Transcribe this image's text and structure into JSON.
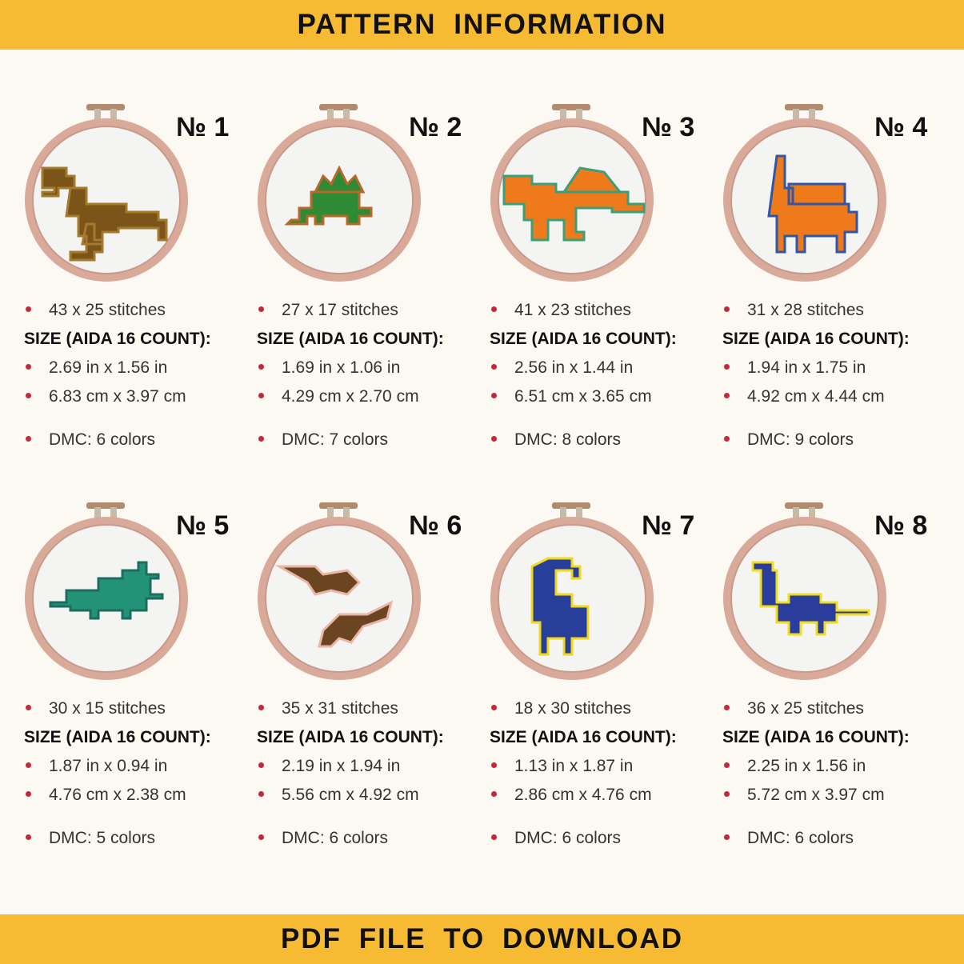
{
  "header": {
    "title": "PATTERN  INFORMATION"
  },
  "footer": {
    "title": "PDF  FILE  TO  DOWNLOAD"
  },
  "colors": {
    "banner": "#f7bb33",
    "bullet": "#c8263a",
    "hoop": "#d9a99a",
    "fabric": "#f4f5f3"
  },
  "size_heading": "SIZE (AIDA 16 COUNT):",
  "patterns": [
    {
      "number": "№ 1",
      "stitches": "43 x 25 stitches",
      "inches": "2.69 in x 1.56 in",
      "cm": "6.83 cm x 3.97 cm",
      "dmc": "DMC: 6 colors",
      "dino": "t-rex",
      "main": "#7a5418",
      "accent": "#a57a2c"
    },
    {
      "number": "№ 2",
      "stitches": "27 x 17 stitches",
      "inches": "1.69 in x 1.06 in",
      "cm": "4.29 cm x 2.70 cm",
      "dmc": "DMC: 7 colors",
      "dino": "stegosaurus",
      "main": "#2f8a35",
      "accent": "#b8682a"
    },
    {
      "number": "№ 3",
      "stitches": "41 x 23 stitches",
      "inches": "2.56 in x 1.44 in",
      "cm": "6.51 cm x 3.65 cm",
      "dmc": "DMC: 8 colors",
      "dino": "spinosaurus",
      "main": "#ee7a1c",
      "accent": "#3aa07a"
    },
    {
      "number": "№ 4",
      "stitches": "31 x 28 stitches",
      "inches": "1.94 in x 1.75 in",
      "cm": "4.92 cm x 4.44 cm",
      "dmc": "DMC: 9 colors",
      "dino": "ankylosaurus",
      "main": "#ef7a1c",
      "accent": "#2f56a8"
    },
    {
      "number": "№ 5",
      "stitches": "30 x 15 stitches",
      "inches": "1.87 in x 0.94 in",
      "cm": "4.76 cm x 2.38 cm",
      "dmc": "DMC: 5 colors",
      "dino": "triceratops",
      "main": "#239378",
      "accent": "#1c6d5e"
    },
    {
      "number": "№ 6",
      "stitches": "35 x 31 stitches",
      "inches": "2.19 in x 1.94 in",
      "cm": "5.56 cm x 4.92 cm",
      "dmc": "DMC: 6 colors",
      "dino": "pterodactyls",
      "main": "#6b4421",
      "accent": "#eab7a6"
    },
    {
      "number": "№ 7",
      "stitches": "18 x 30 stitches",
      "inches": "1.13 in x 1.87 in",
      "cm": "2.86 cm x 4.76 cm",
      "dmc": "DMC: 6 colors",
      "dino": "brachiosaurus",
      "main": "#283f9a",
      "accent": "#f2d81c"
    },
    {
      "number": "№ 8",
      "stitches": "36 x 25 stitches",
      "inches": "2.25 in x 1.56 in",
      "cm": "5.72 cm x 3.97 cm",
      "dmc": "DMC: 6 colors",
      "dino": "diplodocus",
      "main": "#2a3d9c",
      "accent": "#f0dd1e"
    }
  ]
}
